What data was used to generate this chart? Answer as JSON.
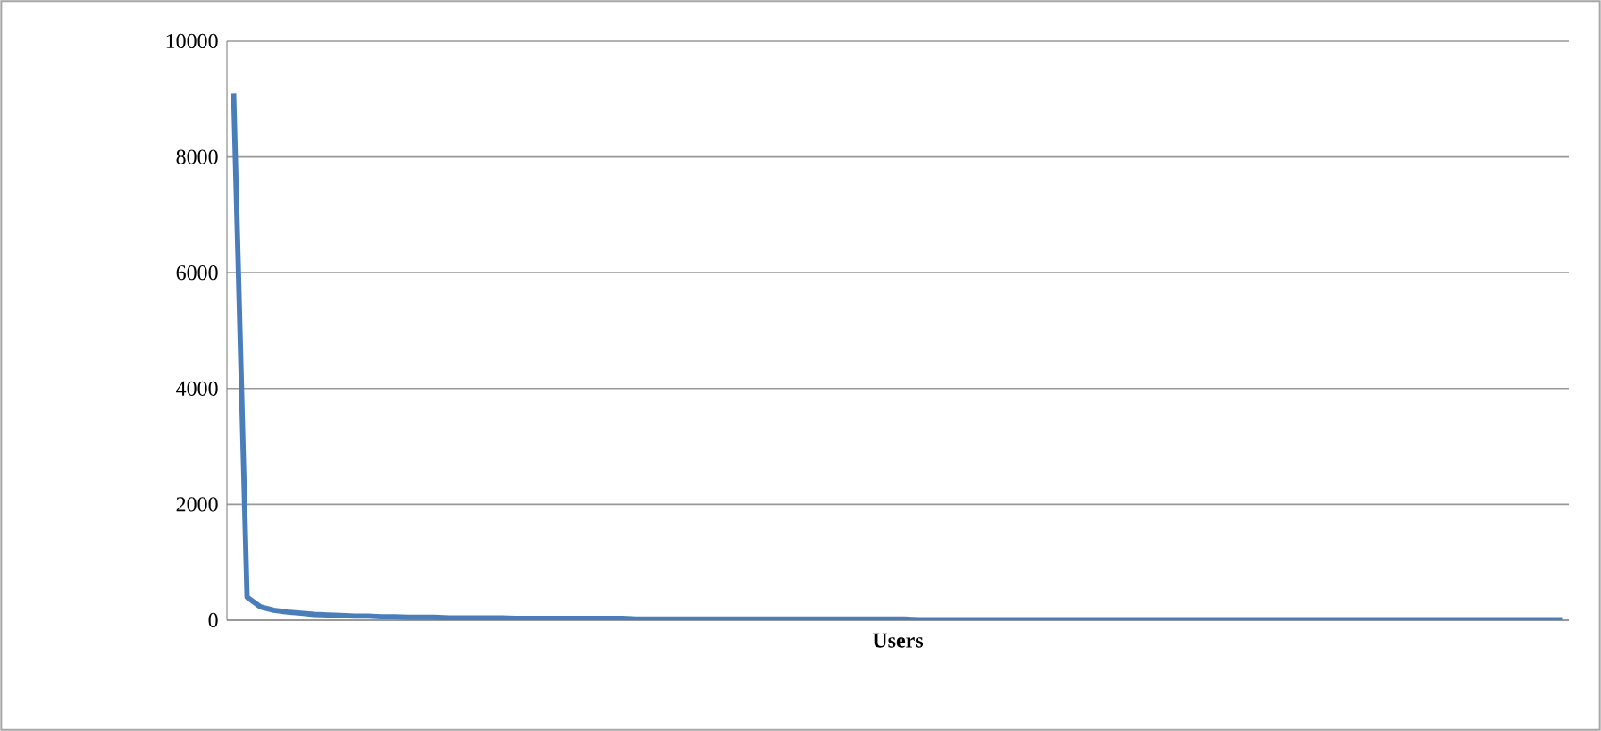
{
  "chart_data": {
    "type": "line",
    "xlabel": "**Users**",
    "categories": [
      null,
      null,
      null,
      null,
      null,
      null,
      null,
      null,
      null,
      null,
      null,
      null,
      null,
      null,
      null,
      null,
      null,
      null,
      null,
      null,
      null,
      null,
      null,
      null,
      null,
      null,
      null,
      null,
      null,
      null,
      null,
      null,
      null,
      null,
      null,
      null,
      null,
      null,
      null,
      null,
      null,
      null,
      null,
      null,
      null,
      null,
      null,
      null,
      null,
      null,
      null,
      null,
      null,
      null,
      null,
      null,
      null,
      null,
      null,
      null,
      null,
      null,
      null,
      null,
      null,
      null,
      null,
      null,
      null,
      null,
      null,
      null,
      null,
      null,
      null,
      null,
      null,
      null,
      null,
      null,
      null,
      null,
      null,
      null,
      null,
      null,
      null,
      null,
      null,
      null,
      null,
      null,
      null,
      null,
      null,
      null,
      null,
      null,
      null,
      null
    ],
    "series": [
      {
        "color": "#4a7ebb",
        "values": [
          9100,
          400,
          230,
          170,
          140,
          120,
          100,
          90,
          80,
          70,
          70,
          60,
          60,
          50,
          50,
          50,
          40,
          40,
          40,
          40,
          40,
          30,
          30,
          30,
          30,
          30,
          30,
          30,
          30,
          30,
          20,
          20,
          20,
          20,
          20,
          20,
          20,
          20,
          20,
          20,
          20,
          20,
          20,
          20,
          20,
          20,
          20,
          20,
          20,
          20,
          20,
          10,
          10,
          10,
          10,
          10,
          10,
          10,
          10,
          10,
          10,
          10,
          10,
          10,
          10,
          10,
          10,
          10,
          10,
          10,
          10,
          10,
          10,
          10,
          10,
          10,
          10,
          10,
          10,
          10,
          10,
          10,
          10,
          10,
          10,
          10,
          10,
          10,
          10,
          10,
          10,
          10,
          10,
          10,
          10,
          10,
          10,
          10,
          10,
          10
        ]
      }
    ],
    "ylim": [
      0,
      10000
    ],
    "yticks": [
      0,
      2000,
      4000,
      6000,
      8000,
      10000
    ],
    "grid": "y",
    "marker": "none",
    "line_style": "solid"
  }
}
